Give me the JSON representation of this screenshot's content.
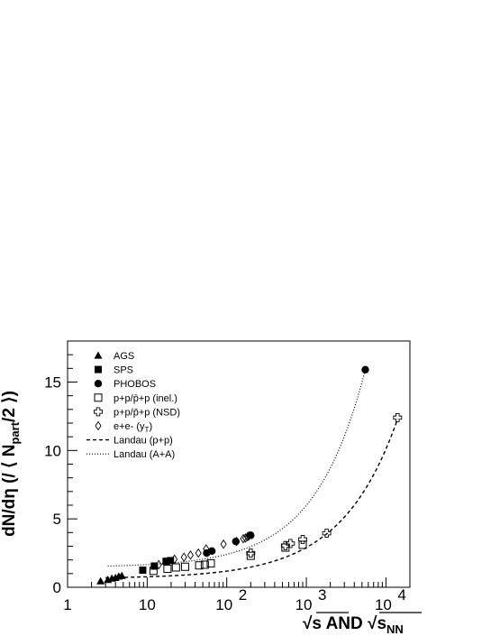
{
  "chart_data": {
    "type": "scatter",
    "title": "",
    "xscale": "log",
    "xlim": [
      1,
      20000
    ],
    "ylim": [
      0,
      18
    ],
    "x_tick_labels": [
      "1",
      "10",
      "10",
      "10",
      "10"
    ],
    "x_tick_exponents": [
      "",
      "",
      "2",
      "3",
      "4"
    ],
    "y_tick_labels": [
      "0",
      "5",
      "10",
      "15"
    ],
    "ylabel": {
      "prefix": "dN/dη (/ ⟨ N",
      "sub": "part",
      "suffix": "/2 ⟩)"
    },
    "xlabel": {
      "part1": "√s AND √s",
      "sub": "NN"
    },
    "grid": false,
    "legend_position": "top-left",
    "series": [
      {
        "name": "AGS",
        "marker": "triangle-filled",
        "points": [
          [
            2.6,
            0.45
          ],
          [
            3.2,
            0.55
          ],
          [
            3.6,
            0.65
          ],
          [
            4.0,
            0.7
          ],
          [
            4.4,
            0.8
          ],
          [
            4.8,
            0.85
          ]
        ]
      },
      {
        "name": "SPS",
        "marker": "square-filled",
        "points": [
          [
            8.8,
            1.25
          ],
          [
            12.3,
            1.55
          ],
          [
            17.3,
            1.9
          ],
          [
            19.6,
            1.95
          ]
        ]
      },
      {
        "name": "PHOBOS",
        "marker": "circle-filled",
        "points": [
          [
            56,
            2.5
          ],
          [
            65,
            2.65
          ],
          [
            130,
            3.35
          ],
          [
            200,
            3.8
          ],
          [
            5500,
            15.9
          ]
        ]
      },
      {
        "name": "p+p/p̄+p (inel.)",
        "marker": "square-open",
        "points": [
          [
            12,
            1.2
          ],
          [
            18,
            1.35
          ],
          [
            23,
            1.45
          ],
          [
            30,
            1.5
          ],
          [
            45,
            1.6
          ],
          [
            53,
            1.65
          ],
          [
            63,
            1.75
          ],
          [
            200,
            2.3
          ],
          [
            546,
            2.9
          ],
          [
            900,
            3.1
          ]
        ]
      },
      {
        "name": "p+p/p̄+p (NSD)",
        "marker": "cross-open",
        "points": [
          [
            200,
            2.5
          ],
          [
            546,
            3.05
          ],
          [
            630,
            3.2
          ],
          [
            900,
            3.5
          ],
          [
            1800,
            3.95
          ],
          [
            14000,
            12.4
          ]
        ]
      },
      {
        "name": "e+e- (y_T)",
        "marker": "diamond-open",
        "points": [
          [
            14,
            1.65
          ],
          [
            22,
            2.05
          ],
          [
            29,
            2.2
          ],
          [
            35,
            2.35
          ],
          [
            44,
            2.5
          ],
          [
            55,
            2.8
          ],
          [
            91,
            3.15
          ],
          [
            133,
            3.35
          ],
          [
            161,
            3.55
          ],
          [
            172,
            3.6
          ],
          [
            183,
            3.7
          ],
          [
            189,
            3.75
          ]
        ]
      },
      {
        "name": "Landau (p+p)",
        "line": "dashed",
        "x_range": [
          3.0,
          14000
        ]
      },
      {
        "name": "Landau (A+A)",
        "line": "dotted",
        "x_range": [
          3.2,
          5500
        ]
      }
    ]
  }
}
